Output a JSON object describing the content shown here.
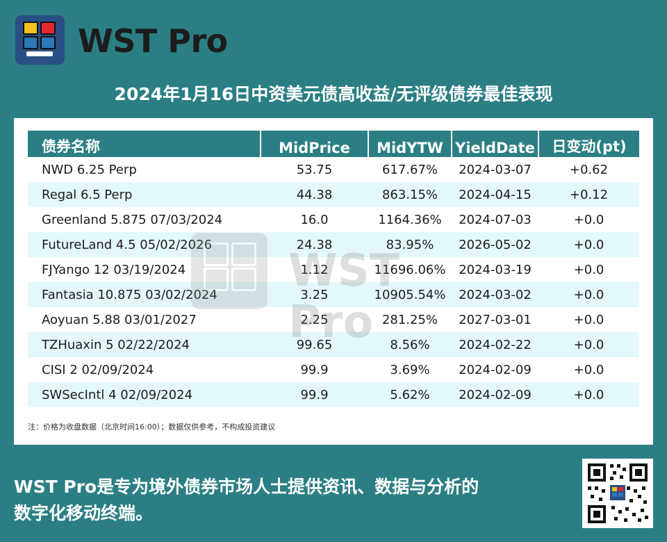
{
  "brand": {
    "name": "WST Pro",
    "logo_colors": [
      "#f4c21e",
      "#e6262d",
      "#2d78b7",
      "#2a4f84"
    ]
  },
  "headline": "2024年1月16日中资美元债高收益/无评级债券最佳表现",
  "table": {
    "headers": [
      "债券名称",
      "MidPrice",
      "MidYTW",
      "YieldDate",
      "日变动(pt)"
    ],
    "rows": [
      [
        "NWD 6.25 Perp",
        "53.75",
        "617.67%",
        "2024-03-07",
        "+0.62"
      ],
      [
        "Regal 6.5 Perp",
        "44.38",
        "863.15%",
        "2024-04-15",
        "+0.12"
      ],
      [
        "Greenland 5.875 07/03/2024",
        "16.0",
        "1164.36%",
        "2024-07-03",
        "+0.0"
      ],
      [
        "FutureLand 4.5 05/02/2026",
        "24.38",
        "83.95%",
        "2026-05-02",
        "+0.0"
      ],
      [
        "FJYango 12 03/19/2024",
        "1.12",
        "11696.06%",
        "2024-03-19",
        "+0.0"
      ],
      [
        "Fantasia 10.875 03/02/2024",
        "3.25",
        "10905.54%",
        "2024-03-02",
        "+0.0"
      ],
      [
        "Aoyuan 5.88 03/01/2027",
        "2.25",
        "281.25%",
        "2027-03-01",
        "+0.0"
      ],
      [
        "TZHuaxin 5 02/22/2024",
        "99.65",
        "8.56%",
        "2024-02-22",
        "+0.0"
      ],
      [
        "CISI 2 02/09/2024",
        "99.9",
        "3.69%",
        "2024-02-09",
        "+0.0"
      ],
      [
        "SWSecIntl 4 02/09/2024",
        "99.9",
        "5.62%",
        "2024-02-09",
        "+0.0"
      ]
    ]
  },
  "note": "注：价格为收盘数据（北京时间16:00）；数据仅供参考，不构成投资建议",
  "watermark_text": "WST Pro",
  "footer": {
    "line1": "WST Pro是专为境外债券市场人士提供资讯、数据与分析的",
    "line2": "数字化移动终端。"
  },
  "colors": {
    "background": "#2b7f84",
    "header_fill": "#2b7f84",
    "alt_row": "#e4f8fb"
  }
}
